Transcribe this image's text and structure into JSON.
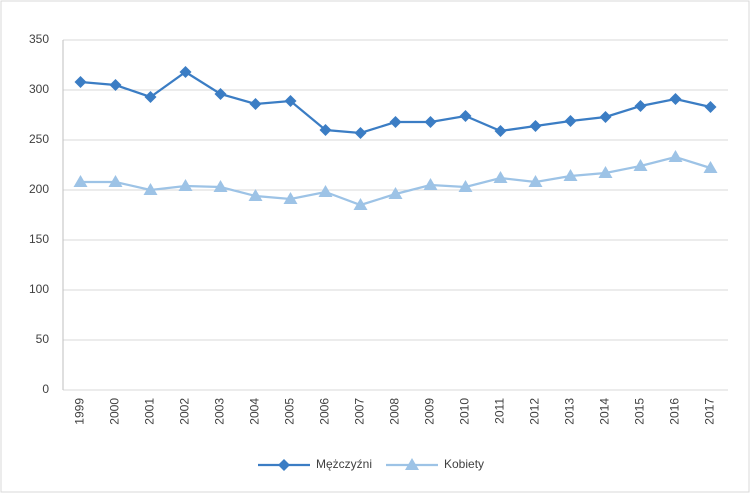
{
  "chart_data": {
    "type": "line",
    "categories": [
      "1999",
      "2000",
      "2001",
      "2002",
      "2003",
      "2004",
      "2005",
      "2006",
      "2007",
      "2008",
      "2009",
      "2010",
      "2011",
      "2012",
      "2013",
      "2014",
      "2015",
      "2016",
      "2017"
    ],
    "series": [
      {
        "name": "Mężczyźni",
        "color": "#3b7dc4",
        "marker": "diamond",
        "values": [
          308,
          305,
          293,
          318,
          296,
          286,
          289,
          260,
          257,
          268,
          268,
          274,
          259,
          264,
          269,
          273,
          284,
          291,
          283
        ]
      },
      {
        "name": "Kobiety",
        "color": "#9dc3e6",
        "marker": "triangle",
        "values": [
          208,
          208,
          200,
          204,
          203,
          194,
          191,
          198,
          185,
          196,
          205,
          203,
          212,
          208,
          214,
          217,
          224,
          233,
          222
        ]
      }
    ],
    "ylim": [
      0,
      350
    ],
    "yticks": [
      0,
      50,
      100,
      150,
      200,
      250,
      300,
      350
    ],
    "grid": true,
    "legend": "bottom"
  }
}
